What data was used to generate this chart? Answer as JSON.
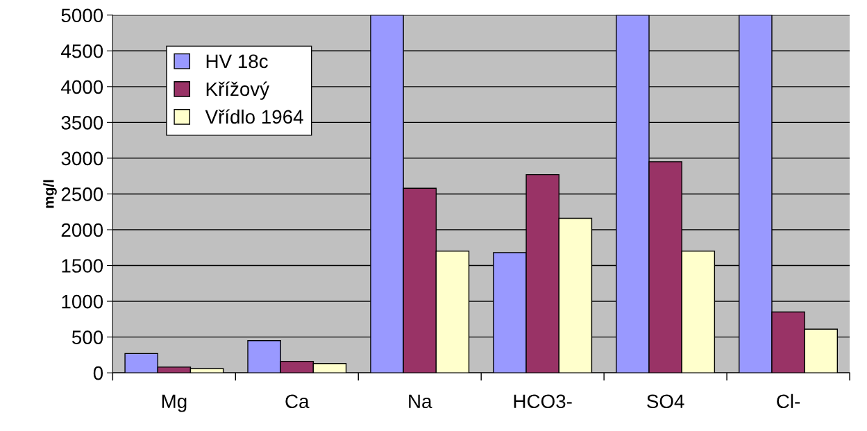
{
  "chart_data": {
    "type": "bar",
    "ylabel": "mg/l",
    "categories": [
      "Mg",
      "Ca",
      "Na",
      "HCO3-",
      "SO4",
      "Cl-"
    ],
    "series": [
      {
        "name": "HV 18c",
        "color": "#9999ff",
        "values": [
          270,
          450,
          5000,
          1680,
          5000,
          5000
        ]
      },
      {
        "name": "Křížový",
        "color": "#993366",
        "values": [
          80,
          160,
          2580,
          2770,
          2950,
          850
        ]
      },
      {
        "name": "Vřídlo 1964",
        "color": "#ffffcc",
        "values": [
          60,
          130,
          1700,
          2160,
          1700,
          610
        ]
      }
    ],
    "ylim": [
      0,
      5000
    ],
    "yticks": [
      0,
      500,
      1000,
      1500,
      2000,
      2500,
      3000,
      3500,
      4000,
      4500,
      5000
    ],
    "grid": "y",
    "legend": "top left"
  }
}
